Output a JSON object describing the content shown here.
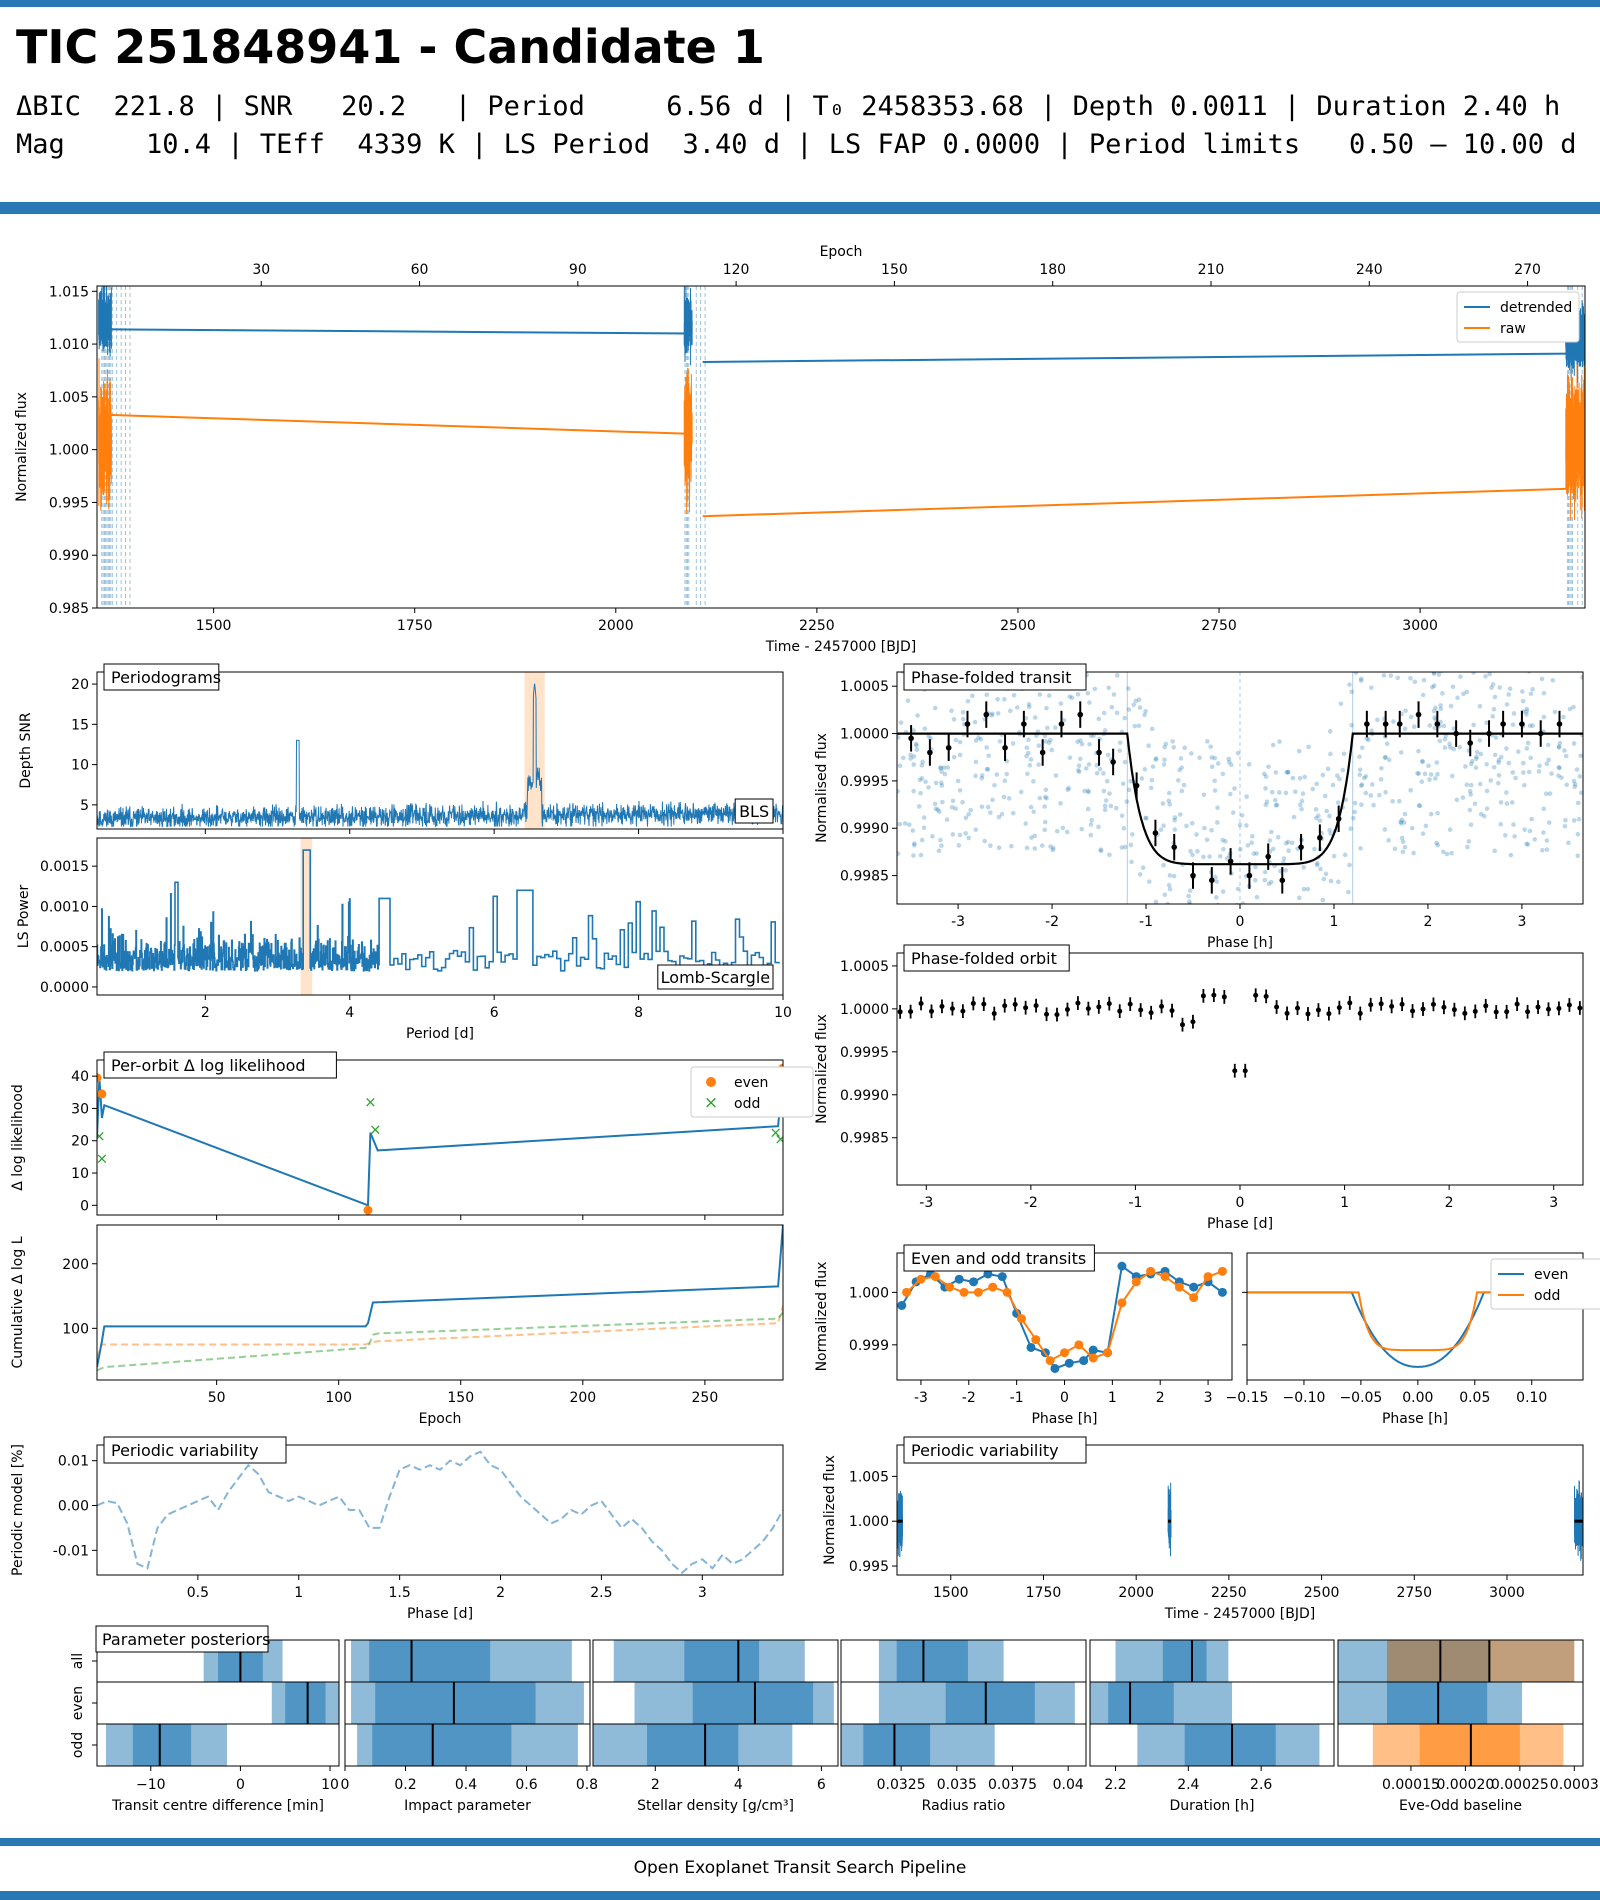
{
  "header": {
    "title": "TIC 251848941 - Candidate 1",
    "line1": "ΔBIC  221.8 | SNR   20.2   | Period     6.56 d | T₀ 2458353.68 | Depth 0.0011 | Duration 2.40 h",
    "line2": "Mag     10.4 | TEff  4339 K | LS Period  3.40 d | LS FAP 0.0000 | Period limits   0.50 – 10.00 d"
  },
  "footer": {
    "text": "Open Exoplanet Transit Search Pipeline"
  },
  "colors": {
    "blue": "#1f77b4",
    "orange": "#ff7f0e",
    "green": "#2ca02c",
    "band": "#2878b5"
  },
  "chart_data": [
    {
      "id": "lightcurve",
      "type": "line",
      "xlabel": "Time - 2457000 [BJD]",
      "ylabel": "Normalized flux",
      "x2label": "Epoch",
      "xlim": [
        1355,
        3205
      ],
      "ylim": [
        0.985,
        1.0155
      ],
      "xticks": [
        1500,
        1750,
        2000,
        2250,
        2500,
        2750,
        3000
      ],
      "yticks": [
        0.985,
        0.99,
        0.995,
        1.0,
        1.005,
        1.01,
        1.015
      ],
      "x2ticks": [
        30,
        60,
        90,
        120,
        150,
        180,
        210,
        240,
        270
      ],
      "legend": "top-right",
      "series": [
        {
          "name": "detrended",
          "color": "#1f77b4",
          "segments": [
            [
              1366,
              1.0114,
              2091,
              1.011
            ],
            [
              2108,
              1.0083,
              3185,
              1.0091
            ]
          ]
        },
        {
          "name": "raw",
          "color": "#ff7f0e",
          "segments": [
            [
              1366,
              1.0033,
              2091,
              1.0015
            ],
            [
              2108,
              0.9937,
              3185,
              0.9963
            ]
          ]
        }
      ]
    },
    {
      "id": "bls",
      "type": "line",
      "label": "Periodograms",
      "tag": "BLS",
      "ylabel": "Depth SNR",
      "xlim": [
        0.5,
        10
      ],
      "ylim": [
        2,
        21.5
      ],
      "yticks": [
        5,
        10,
        15,
        20
      ],
      "peak_period": 6.56,
      "peak_snr": 20.2
    },
    {
      "id": "ls",
      "type": "line",
      "tag": "Lomb-Scargle",
      "xlabel": "Period [d]",
      "ylabel": "LS Power",
      "xlim": [
        0.5,
        10
      ],
      "ylim": [
        -0.0001,
        0.00185
      ],
      "xticks": [
        2,
        4,
        6,
        8,
        10
      ],
      "yticks": [
        0.0,
        0.0005,
        0.001,
        0.0015
      ],
      "peak_period": 3.4
    },
    {
      "id": "loglik",
      "type": "line",
      "label": "Per-orbit Δ log likelihood",
      "ylabel": "Δ log likelihood",
      "xlim": [
        1,
        282
      ],
      "ylim": [
        -3,
        45
      ],
      "yticks": [
        0,
        10,
        20,
        30,
        40
      ],
      "legend": "top-right",
      "line": [
        [
          1,
          21
        ],
        [
          2,
          39.5
        ],
        [
          3,
          27
        ],
        [
          4,
          31
        ],
        [
          112,
          0
        ],
        [
          113,
          22.5
        ],
        [
          116,
          17
        ],
        [
          280,
          24.5
        ],
        [
          281,
          33
        ],
        [
          282,
          43
        ]
      ],
      "even": [
        [
          1,
          39.5
        ],
        [
          3,
          34.5
        ],
        [
          112,
          -1.5
        ],
        [
          281,
          35
        ],
        [
          282,
          42.5
        ]
      ],
      "odd": [
        [
          2,
          21.5
        ],
        [
          3,
          14.5
        ],
        [
          113,
          32
        ],
        [
          115,
          23.5
        ],
        [
          279,
          22.5
        ],
        [
          281,
          20.5
        ]
      ]
    },
    {
      "id": "cumlik",
      "type": "line",
      "xlabel": "Epoch",
      "ylabel": "Cumulative Δ log L",
      "xlim": [
        1,
        282
      ],
      "ylim": [
        20,
        260
      ],
      "xticks": [
        50,
        100,
        150,
        200,
        250
      ],
      "yticks": [
        100,
        200
      ],
      "total": [
        [
          1,
          40
        ],
        [
          3,
          80
        ],
        [
          4,
          103
        ],
        [
          111,
          103
        ],
        [
          112,
          108
        ],
        [
          114,
          140
        ],
        [
          280,
          165
        ],
        [
          282,
          260
        ]
      ],
      "even": [
        [
          1,
          55
        ],
        [
          3,
          75
        ],
        [
          111,
          75
        ],
        [
          113,
          78
        ],
        [
          116,
          80
        ],
        [
          280,
          108
        ],
        [
          282,
          135
        ]
      ],
      "odd": [
        [
          1,
          35
        ],
        [
          4,
          40
        ],
        [
          112,
          70
        ],
        [
          114,
          90
        ],
        [
          116,
          92
        ],
        [
          280,
          115
        ],
        [
          282,
          125
        ]
      ]
    },
    {
      "id": "periodic",
      "type": "line",
      "label": "Periodic variability",
      "xlabel": "Phase [d]",
      "ylabel": "Periodic model [%]",
      "xlim": [
        0,
        3.4
      ],
      "ylim": [
        -0.0155,
        0.0135
      ],
      "xticks": [
        0.5,
        1.0,
        1.5,
        2.0,
        2.5,
        3.0
      ],
      "yticks": [
        -0.01,
        0.0,
        0.01
      ],
      "x": [
        0,
        0.05,
        0.1,
        0.15,
        0.2,
        0.25,
        0.3,
        0.35,
        0.4,
        0.45,
        0.5,
        0.55,
        0.6,
        0.65,
        0.7,
        0.75,
        0.8,
        0.85,
        0.9,
        0.95,
        1.0,
        1.05,
        1.1,
        1.15,
        1.2,
        1.25,
        1.3,
        1.35,
        1.4,
        1.45,
        1.5,
        1.55,
        1.6,
        1.65,
        1.7,
        1.75,
        1.8,
        1.85,
        1.9,
        1.95,
        2.0,
        2.05,
        2.1,
        2.15,
        2.2,
        2.25,
        2.3,
        2.35,
        2.4,
        2.45,
        2.5,
        2.55,
        2.6,
        2.65,
        2.7,
        2.75,
        2.8,
        2.85,
        2.9,
        2.95,
        3.0,
        3.05,
        3.1,
        3.15,
        3.2,
        3.25,
        3.3,
        3.35,
        3.4
      ],
      "values": [
        0.0,
        0.001,
        0.0005,
        -0.004,
        -0.013,
        -0.014,
        -0.005,
        -0.002,
        -0.001,
        0.0,
        0.001,
        0.002,
        -0.001,
        0.003,
        0.006,
        0.009,
        0.007,
        0.003,
        0.002,
        0.001,
        0.002,
        0.001,
        0.0,
        0.001,
        0.002,
        -0.001,
        -0.001,
        -0.005,
        -0.005,
        0.002,
        0.008,
        0.009,
        0.008,
        0.009,
        0.008,
        0.01,
        0.009,
        0.011,
        0.012,
        0.009,
        0.008,
        0.005,
        0.002,
        0.0,
        -0.002,
        -0.004,
        -0.003,
        -0.001,
        -0.002,
        0.0,
        0.001,
        -0.002,
        -0.005,
        -0.003,
        -0.005,
        -0.008,
        -0.01,
        -0.013,
        -0.015,
        -0.013,
        -0.012,
        -0.014,
        -0.011,
        -0.013,
        -0.012,
        -0.01,
        -0.008,
        -0.005,
        -0.001
      ]
    },
    {
      "id": "transit",
      "type": "scatter",
      "label": "Phase-folded transit",
      "xlabel": "Phase [h]",
      "ylabel": "Normalised flux",
      "xlim": [
        -3.65,
        3.65
      ],
      "ylim": [
        0.9982,
        1.00065
      ],
      "xticks": [
        -3,
        -2,
        -1,
        0,
        1,
        2,
        3
      ],
      "yticks": [
        0.9985,
        0.999,
        0.9995,
        1.0,
        1.0005
      ],
      "binned": [
        [
          -3.5,
          0.99995
        ],
        [
          -3.3,
          0.9998
        ],
        [
          -3.1,
          0.99985
        ],
        [
          -2.9,
          1.0001
        ],
        [
          -2.7,
          1.0002
        ],
        [
          -2.5,
          0.99985
        ],
        [
          -2.3,
          1.0001
        ],
        [
          -2.1,
          0.9998
        ],
        [
          -1.9,
          1.0001
        ],
        [
          -1.7,
          1.0002
        ],
        [
          -1.5,
          0.9998
        ],
        [
          -1.35,
          0.9997
        ],
        [
          -1.1,
          0.99945
        ],
        [
          -0.9,
          0.99895
        ],
        [
          -0.7,
          0.9988
        ],
        [
          -0.5,
          0.9985
        ],
        [
          -0.3,
          0.99845
        ],
        [
          -0.1,
          0.99865
        ],
        [
          0.1,
          0.9985
        ],
        [
          0.3,
          0.9987
        ],
        [
          0.45,
          0.99845
        ],
        [
          0.65,
          0.9988
        ],
        [
          0.85,
          0.9989
        ],
        [
          1.05,
          0.9991
        ],
        [
          1.35,
          1.0001
        ],
        [
          1.55,
          1.0001
        ],
        [
          1.7,
          1.0001
        ],
        [
          1.9,
          1.0002
        ],
        [
          2.1,
          1.0001
        ],
        [
          2.3,
          1.0
        ],
        [
          2.45,
          0.9999
        ],
        [
          2.65,
          1.0
        ],
        [
          2.8,
          1.0001
        ],
        [
          3.0,
          1.0001
        ],
        [
          3.2,
          1.0
        ],
        [
          3.4,
          1.0001
        ]
      ]
    },
    {
      "id": "orbit",
      "type": "scatter",
      "label": "Phase-folded orbit",
      "xlabel": "Phase [d]",
      "ylabel": "Normalized flux",
      "xlim": [
        -3.28,
        3.28
      ],
      "ylim": [
        0.99795,
        1.00065
      ],
      "xticks": [
        -3,
        -2,
        -1,
        0,
        1,
        2,
        3
      ],
      "yticks": [
        0.9985,
        0.999,
        0.9995,
        1.0,
        1.0005
      ]
    },
    {
      "id": "evenodd",
      "type": "line",
      "label": "Even and odd transits",
      "xlabel": "Phase [h]",
      "ylabel": "Normalized flux",
      "xlim": [
        -3.5,
        3.5
      ],
      "ylim": [
        0.99833,
        1.00075
      ],
      "xticks": [
        -3,
        -2,
        -1,
        0,
        1,
        2,
        3
      ],
      "yticks": [
        0.999,
        1.0
      ],
      "series": [
        {
          "name": "even",
          "color": "#1f77b4",
          "x": [
            -3.4,
            -3.1,
            -2.8,
            -2.5,
            -2.2,
            -1.9,
            -1.6,
            -1.3,
            -1.0,
            -0.7,
            -0.4,
            -0.2,
            0.1,
            0.4,
            0.6,
            0.9,
            1.2,
            1.5,
            1.8,
            2.1,
            2.4,
            2.7,
            3.0,
            3.3
          ],
          "values": [
            0.99975,
            1.0002,
            1.00035,
            1.0001,
            1.00025,
            1.0002,
            1.00035,
            1.0003,
            0.9996,
            0.99895,
            0.99885,
            0.99855,
            0.99865,
            0.9987,
            0.9989,
            0.99885,
            1.0005,
            1.0003,
            1.00035,
            1.0004,
            1.0002,
            1.0001,
            1.0002,
            1.0
          ]
        },
        {
          "name": "odd",
          "color": "#ff7f0e",
          "x": [
            -3.3,
            -3.0,
            -2.7,
            -2.4,
            -2.1,
            -1.8,
            -1.5,
            -1.2,
            -0.9,
            -0.6,
            -0.3,
            0.0,
            0.3,
            0.6,
            0.9,
            1.2,
            1.5,
            1.8,
            2.1,
            2.4,
            2.7,
            3.0,
            3.3
          ],
          "values": [
            1.0,
            1.00025,
            1.0003,
            1.0001,
            1.0,
            1.0,
            1.0001,
            1.0,
            0.9995,
            0.9991,
            0.9987,
            0.99885,
            0.999,
            0.99875,
            0.99885,
            0.9998,
            1.0002,
            1.0004,
            1.0003,
            1.0001,
            0.9999,
            1.0003,
            1.0004
          ]
        }
      ]
    },
    {
      "id": "evenoddmodel",
      "type": "line",
      "xlabel": "Phase [h]",
      "xlim": [
        -0.15,
        0.145
      ],
      "ylim": [
        0.99833,
        1.00075
      ],
      "xticks": [
        -0.15,
        -0.1,
        -0.05,
        0.0,
        0.05,
        0.1
      ],
      "legend": "top-right",
      "series": [
        {
          "name": "even",
          "color": "#1f77b4",
          "depth": 0.00142
        },
        {
          "name": "odd",
          "color": "#ff7f0e",
          "depth": 0.0011
        }
      ]
    },
    {
      "id": "varlc",
      "type": "line",
      "label": "Periodic variability",
      "xlabel": "Time - 2457000 [BJD]",
      "ylabel": "Normalized flux",
      "xlim": [
        1355,
        3205
      ],
      "ylim": [
        0.994,
        1.0085
      ],
      "xticks": [
        1500,
        1750,
        2000,
        2250,
        2500,
        2750,
        3000
      ],
      "yticks": [
        0.995,
        1.0,
        1.005
      ]
    },
    {
      "id": "posteriors",
      "type": "bar",
      "label": "Parameter posteriors",
      "rows": [
        "all",
        "even",
        "odd"
      ],
      "columns": [
        {
          "xlabel": "Transit centre difference [min]",
          "xlim": [
            -16,
            11
          ],
          "xticks": [
            -10,
            0,
            10
          ],
          "all": [
            -4.1,
            -2.5,
            0.0,
            2.5,
            4.7
          ],
          "even": [
            3.5,
            5.0,
            7.5,
            9.5,
            11
          ],
          "odd": [
            -15,
            -12,
            -9,
            -5.5,
            -1.5
          ]
        },
        {
          "xlabel": "Impact parameter",
          "xlim": [
            0.0,
            0.81
          ],
          "xticks": [
            0.0,
            0.2,
            0.4,
            0.6,
            0.8
          ],
          "all": [
            0.02,
            0.08,
            0.22,
            0.48,
            0.75
          ],
          "even": [
            0.02,
            0.1,
            0.36,
            0.63,
            0.79
          ],
          "odd": [
            0.04,
            0.09,
            0.29,
            0.55,
            0.77
          ]
        },
        {
          "xlabel": "Stellar density [g/cm³]",
          "xlim": [
            0.5,
            6.4
          ],
          "xticks": [
            2,
            4,
            6
          ],
          "all": [
            1.0,
            2.7,
            4.0,
            4.5,
            5.6
          ],
          "even": [
            1.5,
            2.9,
            4.4,
            5.8,
            6.3
          ],
          "odd": [
            0.5,
            1.8,
            3.2,
            4.0,
            5.3
          ]
        },
        {
          "xlabel": "Radius ratio",
          "xlim": [
            0.0298,
            0.0408
          ],
          "xticks": [
            0.0325,
            0.035,
            0.0375,
            0.04
          ],
          "all": [
            0.0315,
            0.0323,
            0.0335,
            0.0355,
            0.0371
          ],
          "even": [
            0.0315,
            0.0345,
            0.0363,
            0.0385,
            0.0403
          ],
          "odd": [
            0.0298,
            0.0308,
            0.0322,
            0.0338,
            0.0367
          ]
        },
        {
          "xlabel": "Duration [h]",
          "xlim": [
            2.13,
            2.8
          ],
          "xticks": [
            2.2,
            2.4,
            2.6
          ],
          "all": [
            2.2,
            2.33,
            2.41,
            2.45,
            2.51
          ],
          "even": [
            2.13,
            2.18,
            2.24,
            2.36,
            2.52
          ],
          "odd": [
            2.26,
            2.39,
            2.52,
            2.64,
            2.76
          ]
        },
        {
          "xlabel": "Eve-Odd baseline",
          "xlim": [
            8.3e-05,
            0.000308
          ],
          "xticks": [
            0.00015,
            0.0002,
            0.00025,
            0.0003
          ],
          "tick_labels": [
            "0.00015",
            "0.00020",
            "0.00025",
            "0.0003"
          ],
          "all": [
            8.3e-05,
            0.000128,
            0.000177,
            0.000222,
            0.0003
          ],
          "even": [
            8.3e-05,
            0.000128,
            0.000175,
            0.00022,
            0.000252
          ],
          "odd": [
            0.000115,
            0.000158,
            0.000205,
            0.00025,
            0.00029
          ]
        }
      ]
    }
  ]
}
